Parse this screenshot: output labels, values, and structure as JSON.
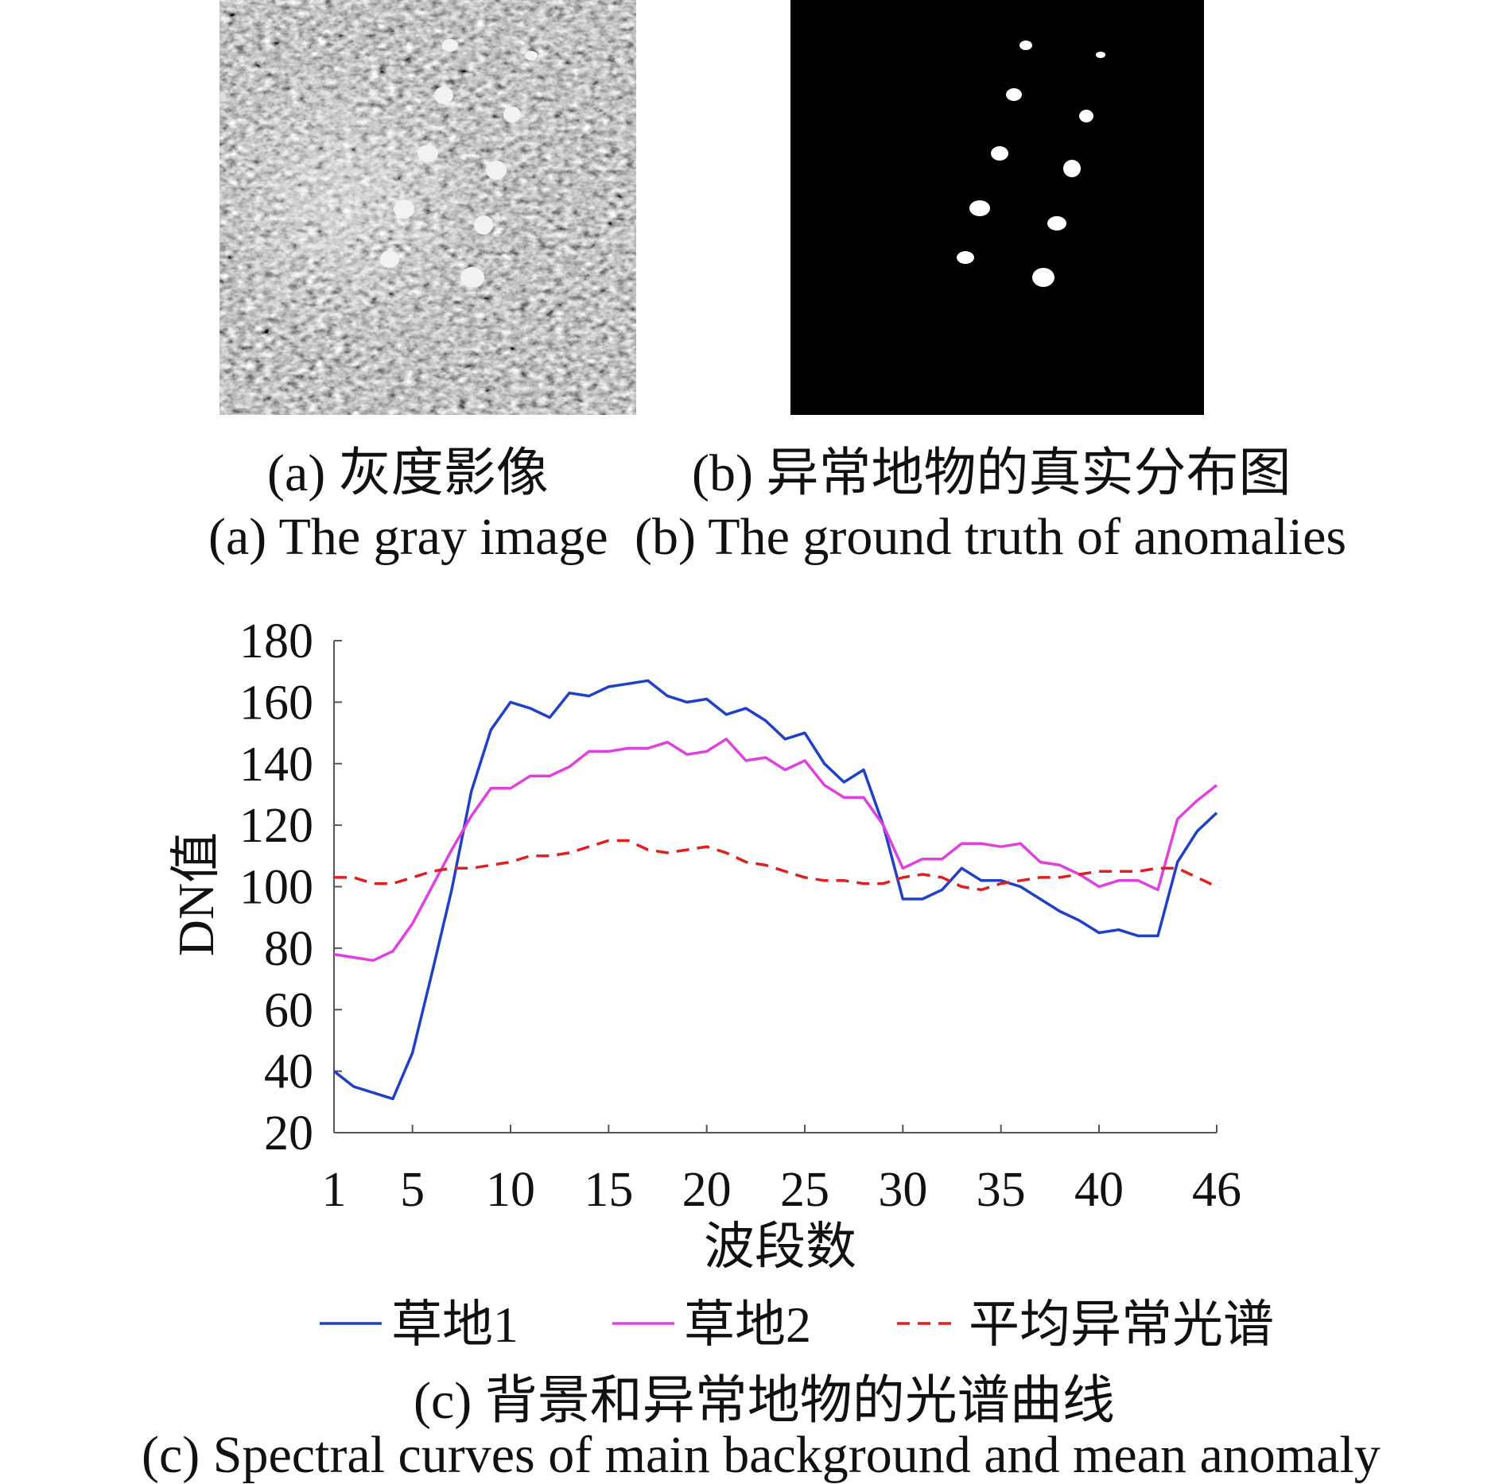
{
  "panels": {
    "a": {
      "caption_cn": "(a) 灰度影像",
      "caption_en": "(a) The gray image"
    },
    "b": {
      "caption_cn": "(b) 异常地物的真实分布图",
      "caption_en": "(b) The ground truth of anomalies"
    },
    "c": {
      "caption_cn": "(c) 背景和异常地物的光谱曲线",
      "caption_en": "(c) Spectral curves of main background and mean anomaly"
    }
  },
  "colors": {
    "grass1": "#2040c8",
    "grass2": "#e040e0",
    "anomaly": "#e02020"
  },
  "chart_data": {
    "type": "line",
    "xlabel": "波段数",
    "ylabel": "DN值",
    "xlim": [
      1,
      46
    ],
    "ylim": [
      20,
      180
    ],
    "xticks": [
      1,
      5,
      10,
      15,
      20,
      25,
      30,
      35,
      40,
      46
    ],
    "yticks": [
      20,
      40,
      60,
      80,
      100,
      120,
      140,
      160,
      180
    ],
    "grid": false,
    "legend": "bottom",
    "x": [
      1,
      2,
      3,
      4,
      5,
      6,
      7,
      8,
      9,
      10,
      11,
      12,
      13,
      14,
      15,
      16,
      17,
      18,
      19,
      20,
      21,
      22,
      23,
      24,
      25,
      26,
      27,
      28,
      29,
      30,
      31,
      32,
      33,
      34,
      35,
      36,
      37,
      38,
      39,
      40,
      41,
      42,
      43,
      44,
      45,
      46
    ],
    "series": [
      {
        "name": "草地1",
        "style": "solid",
        "color": "#2040c8",
        "values": [
          40,
          35,
          33,
          31,
          46,
          72,
          99,
          131,
          151,
          160,
          158,
          155,
          163,
          162,
          165,
          166,
          167,
          162,
          160,
          161,
          156,
          158,
          154,
          148,
          150,
          140,
          134,
          138,
          120,
          96,
          96,
          99,
          106,
          102,
          102,
          100,
          96,
          92,
          89,
          85,
          86,
          84,
          84,
          108,
          118,
          124
        ]
      },
      {
        "name": "草地2",
        "style": "solid",
        "color": "#e040e0",
        "values": [
          78,
          77,
          76,
          79,
          88,
          100,
          112,
          123,
          132,
          132,
          136,
          136,
          139,
          144,
          144,
          145,
          145,
          147,
          143,
          144,
          148,
          141,
          142,
          138,
          141,
          133,
          129,
          129,
          120,
          106,
          109,
          109,
          114,
          114,
          113,
          114,
          108,
          107,
          104,
          100,
          102,
          102,
          99,
          122,
          128,
          133
        ]
      },
      {
        "name": "平均异常光谱",
        "style": "dashed",
        "color": "#e02020",
        "values": [
          103,
          103,
          101,
          101,
          103,
          105,
          106,
          106,
          107,
          108,
          110,
          110,
          111,
          113,
          115,
          115,
          112,
          111,
          112,
          113,
          111,
          108,
          107,
          105,
          103,
          102,
          102,
          101,
          101,
          103,
          104,
          103,
          100,
          99,
          101,
          102,
          103,
          103,
          104,
          105,
          105,
          105,
          106,
          106,
          103,
          100
        ]
      }
    ]
  }
}
